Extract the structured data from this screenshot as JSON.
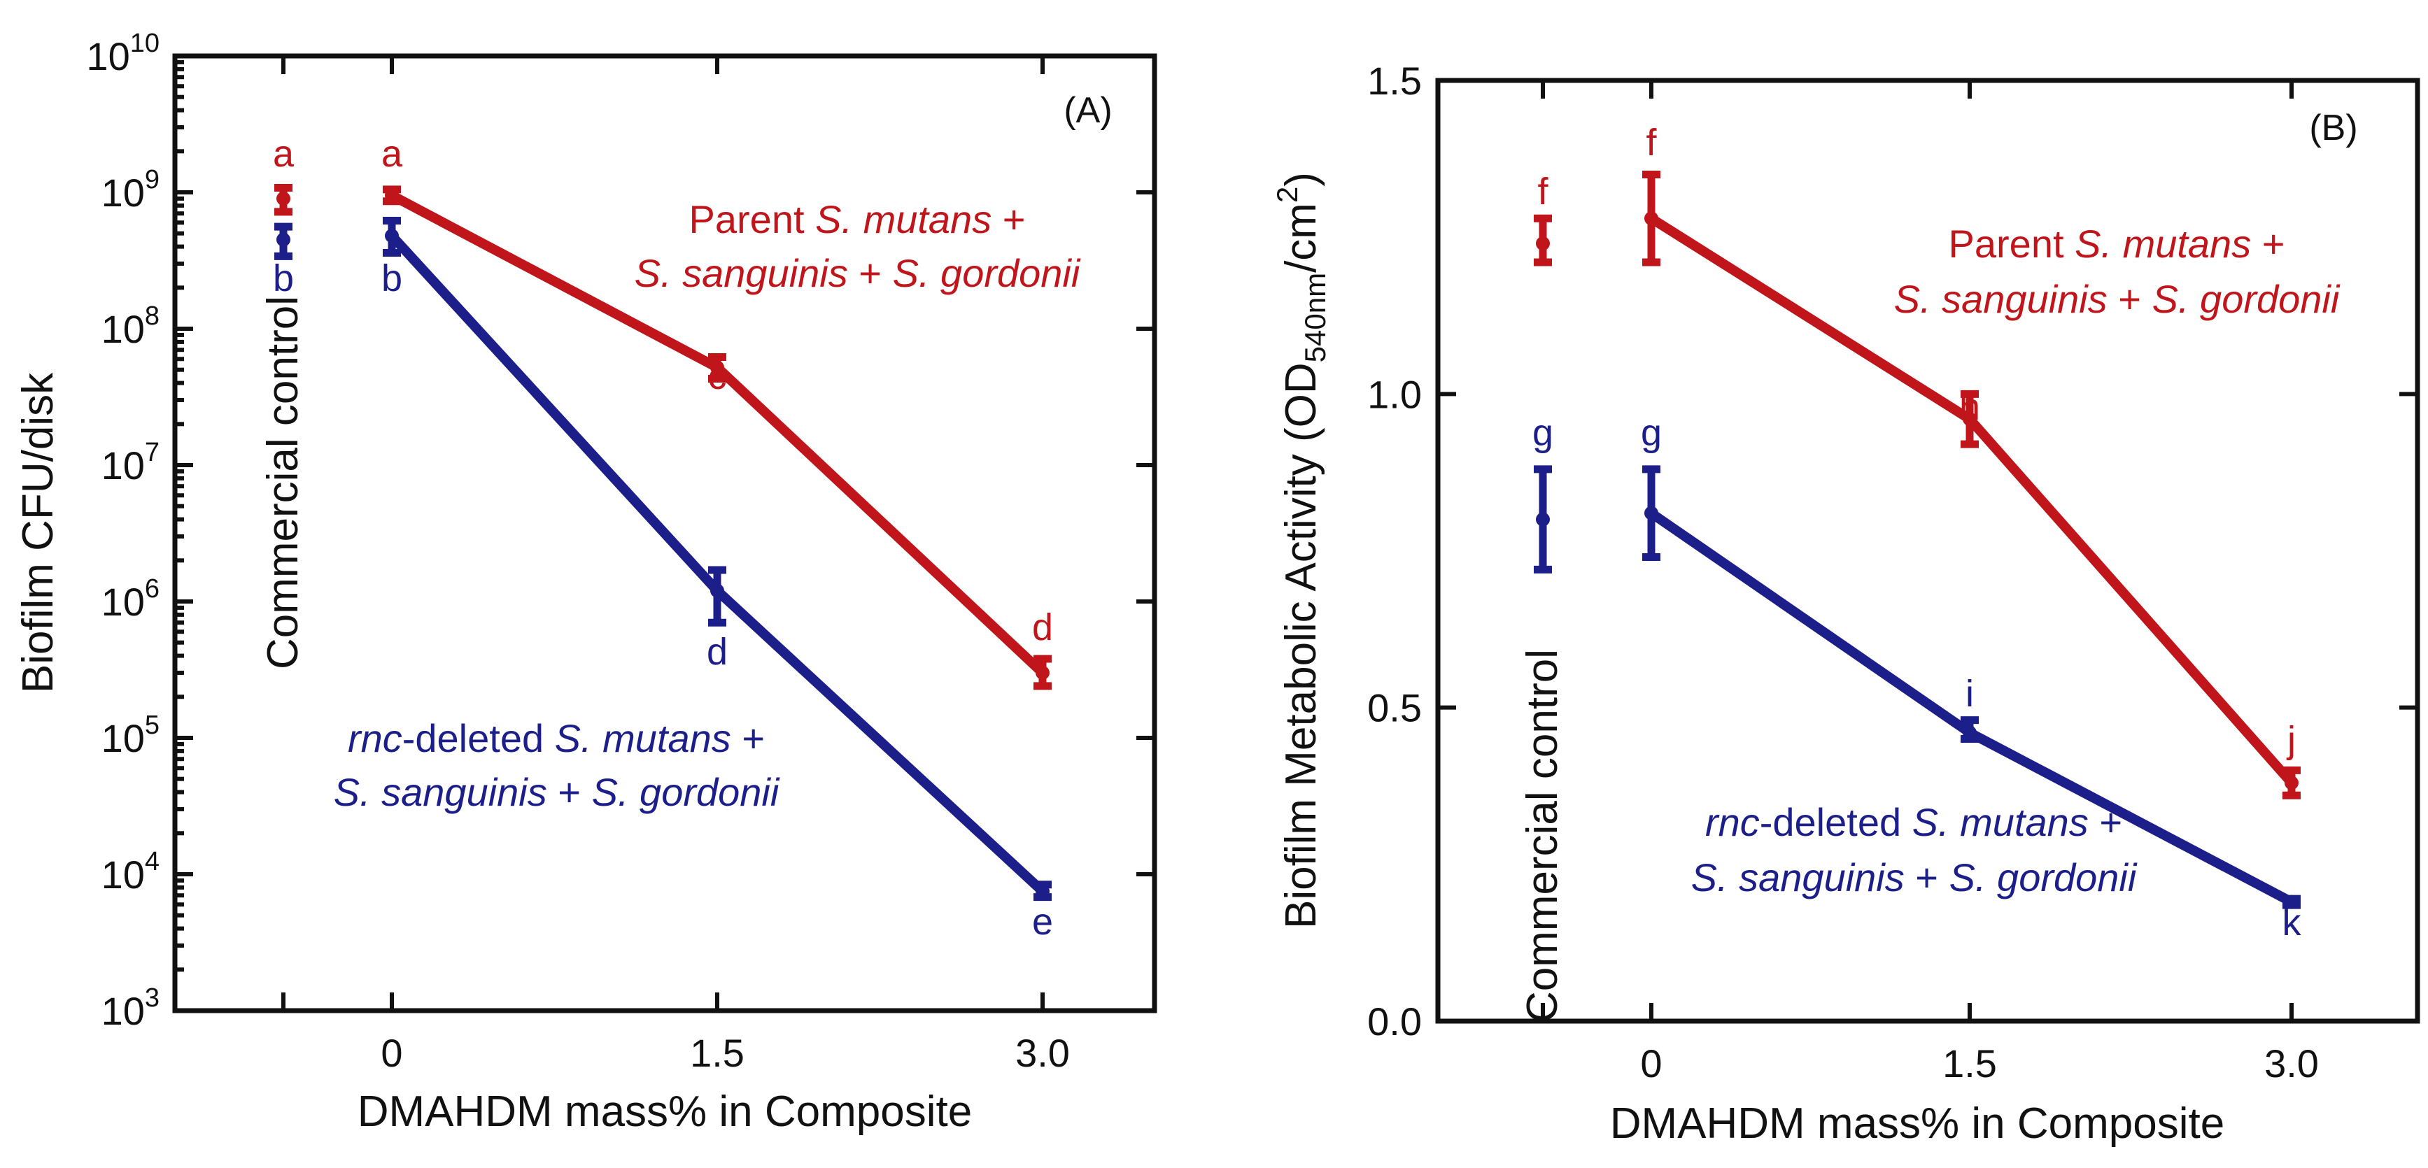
{
  "chart_data": [
    {
      "panel": "(A)",
      "type": "line",
      "yscale": "log",
      "ylabel": "Biofilm CFU/disk",
      "xlabel": "DMAHDM mass% in Composite",
      "x_tick_labels": [
        "0",
        "1.5",
        "3.0"
      ],
      "x": [
        0,
        1.5,
        3.0
      ],
      "ylim": [
        1000,
        10000000000
      ],
      "y_ticks": [
        {
          "base": "10",
          "exp": "3"
        },
        {
          "base": "10",
          "exp": "4"
        },
        {
          "base": "10",
          "exp": "5"
        },
        {
          "base": "10",
          "exp": "6"
        },
        {
          "base": "10",
          "exp": "7"
        },
        {
          "base": "10",
          "exp": "8"
        },
        {
          "base": "10",
          "exp": "9"
        },
        {
          "base": "10",
          "exp": "10"
        }
      ],
      "control_label": "Commercial  control",
      "series": [
        {
          "name": "Parent",
          "color": "#c0161b",
          "legend_lines": [
            {
              "parts": [
                {
                  "t": "Parent ",
                  "i": false
                },
                {
                  "t": "S. mutans",
                  "i": true
                },
                {
                  "t": " +",
                  "i": false
                }
              ]
            },
            {
              "parts": [
                {
                  "t": "S. sanguinis",
                  "i": true
                },
                {
                  "t": " + ",
                  "i": false
                },
                {
                  "t": "S. gordonii",
                  "i": true
                }
              ]
            }
          ],
          "control": {
            "value": 900000000,
            "err_lo": 720000000,
            "err_hi": 1080000000,
            "letter": "a"
          },
          "values": [
            950000000,
            52000000,
            300000
          ],
          "err_lo": [
            860000000,
            43000000,
            240000
          ],
          "err_hi": [
            1050000000,
            62000000,
            380000
          ],
          "letters": [
            "a",
            "c",
            "d"
          ]
        },
        {
          "name": "rnc-deleted",
          "color": "#1c1f8a",
          "legend_lines": [
            {
              "parts": [
                {
                  "t": "rnc",
                  "i": true
                },
                {
                  "t": "-deleted ",
                  "i": false
                },
                {
                  "t": "S. mutans",
                  "i": true
                },
                {
                  "t": " +",
                  "i": false
                }
              ]
            },
            {
              "parts": [
                {
                  "t": "S. sanguinis",
                  "i": true
                },
                {
                  "t": " + ",
                  "i": false
                },
                {
                  "t": "S. gordonii",
                  "i": true
                }
              ]
            }
          ],
          "control": {
            "value": 450000000,
            "err_lo": 340000000,
            "err_hi": 560000000,
            "letter": "b"
          },
          "values": [
            480000000,
            1200000,
            7500
          ],
          "err_lo": [
            360000000,
            700000,
            6800
          ],
          "err_hi": [
            620000000,
            1700000,
            8400
          ],
          "letters": [
            "b",
            "d",
            "e"
          ]
        }
      ]
    },
    {
      "panel": "(B)",
      "type": "line",
      "yscale": "linear",
      "ylabel_main": "Biofilm Metabolic Activity (OD",
      "ylabel_sub": "540nm",
      "ylabel_unit": "/cm",
      "ylabel_sup": "2",
      "ylabel_close": ")",
      "xlabel": "DMAHDM mass% in Composite",
      "x_tick_labels": [
        "0",
        "1.5",
        "3.0"
      ],
      "x": [
        0,
        1.5,
        3.0
      ],
      "ylim": [
        0,
        1.5
      ],
      "y_ticks": [
        {
          "value": 0.0,
          "label": "0.0"
        },
        {
          "value": 0.5,
          "label": "0.5"
        },
        {
          "value": 1.0,
          "label": "1.0"
        },
        {
          "value": 1.5,
          "label": "1.5"
        }
      ],
      "control_label": "Commercial  control",
      "series": [
        {
          "name": "Parent",
          "color": "#c0161b",
          "legend_lines": [
            {
              "parts": [
                {
                  "t": "Parent ",
                  "i": false
                },
                {
                  "t": "S. mutans",
                  "i": true
                },
                {
                  "t": " +",
                  "i": false
                }
              ]
            },
            {
              "parts": [
                {
                  "t": "S. sanguinis",
                  "i": true
                },
                {
                  "t": " + ",
                  "i": false
                },
                {
                  "t": "S. gordonii",
                  "i": true
                }
              ]
            }
          ],
          "control": {
            "value": 1.24,
            "err_lo": 1.21,
            "err_hi": 1.28,
            "letter": "f"
          },
          "values": [
            1.28,
            0.96,
            0.38
          ],
          "err_lo": [
            1.21,
            0.92,
            0.36
          ],
          "err_hi": [
            1.35,
            1.0,
            0.4
          ],
          "letters": [
            "f",
            "h",
            "j"
          ]
        },
        {
          "name": "rnc-deleted",
          "color": "#1c1f8a",
          "legend_lines": [
            {
              "parts": [
                {
                  "t": "rnc",
                  "i": true
                },
                {
                  "t": "-deleted ",
                  "i": false
                },
                {
                  "t": "S. mutans",
                  "i": true
                },
                {
                  "t": " +",
                  "i": false
                }
              ]
            },
            {
              "parts": [
                {
                  "t": "S. sanguinis",
                  "i": true
                },
                {
                  "t": " + ",
                  "i": false
                },
                {
                  "t": "S. gordonii",
                  "i": true
                }
              ]
            }
          ],
          "control": {
            "value": 0.8,
            "err_lo": 0.72,
            "err_hi": 0.88,
            "letter": "g"
          },
          "values": [
            0.81,
            0.46,
            0.19
          ],
          "err_lo": [
            0.74,
            0.45,
            0.185
          ],
          "err_hi": [
            0.88,
            0.48,
            0.195
          ],
          "letters": [
            "g",
            "i",
            "k"
          ]
        }
      ]
    }
  ]
}
